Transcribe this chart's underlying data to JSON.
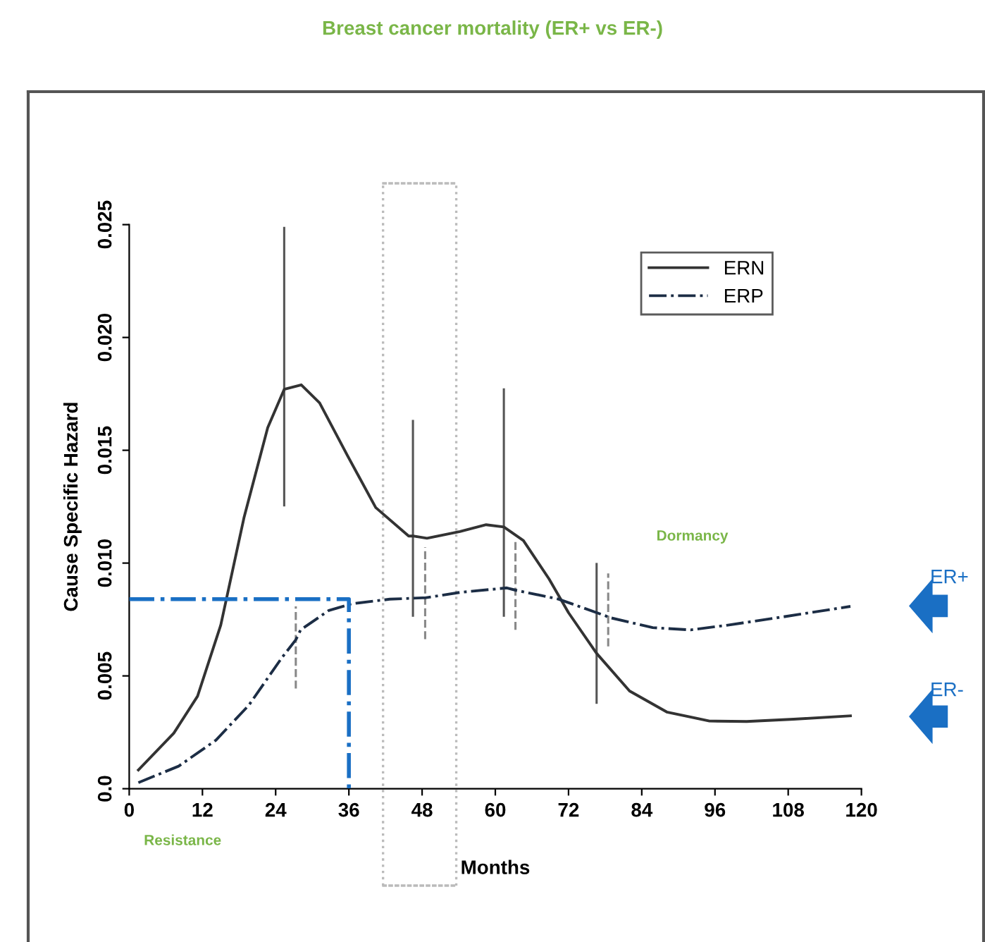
{
  "chart_data": {
    "type": "line",
    "title": "Breast cancer mortality (ER+ vs ER-)",
    "xlabel": "Months",
    "ylabel": "Cause Specific Hazard",
    "xlim": [
      0,
      120
    ],
    "xticks": [
      0,
      12,
      24,
      36,
      48,
      60,
      72,
      84,
      96,
      108,
      120
    ],
    "ylim": [
      0,
      0.025
    ],
    "yticks": [
      {
        "value": 0,
        "label": "0.0"
      },
      0.005,
      {
        "value": 0.01,
        "label": "0.010"
      },
      0.015,
      {
        "value": 0.02,
        "label": "0.020"
      },
      0.025
    ],
    "legend": "top right",
    "grid": false,
    "marker": "none",
    "series": [
      {
        "name": "ERN",
        "color": "#333333",
        "line_style": "solid",
        "x": [
          1.5,
          7.3,
          11.2,
          15,
          18.8,
          22.7,
          25.4,
          28.2,
          31.2,
          35.8,
          40.4,
          45.8,
          46.5,
          48.8,
          54.2,
          58.5,
          61.4,
          64.6,
          68.8,
          72,
          76.6,
          82,
          88.1,
          95.1,
          101.2,
          108.9,
          118.2
        ],
        "values": [
          0.00083,
          0.00246,
          0.0041,
          0.00725,
          0.012,
          0.016,
          0.0177,
          0.0179,
          0.0171,
          0.01475,
          0.01246,
          0.0112,
          0.0112,
          0.0111,
          0.0114,
          0.0117,
          0.0116,
          0.011,
          0.0093,
          0.0078,
          0.006,
          0.00433,
          0.0034,
          0.003,
          0.00298,
          0.00308,
          0.00323
        ],
        "errors": [
          null,
          null,
          null,
          null,
          null,
          null,
          [
            0.01256,
            0.02485
          ],
          null,
          null,
          null,
          null,
          null,
          [
            0.00767,
            0.0163
          ],
          null,
          null,
          null,
          [
            0.00767,
            0.0177
          ],
          null,
          null,
          null,
          [
            0.00381,
            0.00996
          ],
          null,
          null,
          null,
          null,
          null,
          null
        ]
      },
      {
        "name": "ERP",
        "color": "#1c2d45",
        "line_style": "dashed",
        "x": [
          1.5,
          8.1,
          14.2,
          19.6,
          25,
          27.3,
          28.1,
          32.7,
          36.5,
          42.7,
          48.1,
          48.5,
          54.2,
          61.9,
          63.3,
          70.4,
          78.1,
          78.5,
          85.8,
          92,
          98.1,
          105.8,
          118.2
        ],
        "values": [
          0.00027,
          0.001,
          0.00215,
          0.0037,
          0.0058,
          0.0066,
          0.00704,
          0.0079,
          0.0082,
          0.0084,
          0.00846,
          0.00846,
          0.0087,
          0.0089,
          0.0088,
          0.0084,
          0.00766,
          0.0076,
          0.00714,
          0.00704,
          0.00725,
          0.00756,
          0.00808
        ],
        "errors": [
          null,
          null,
          null,
          null,
          null,
          [
            0.00444,
            0.00808
          ],
          null,
          null,
          null,
          null,
          null,
          [
            0.00663,
            0.0107
          ],
          null,
          null,
          [
            0.00704,
            0.011
          ],
          null,
          null,
          [
            0.00631,
            0.00954
          ],
          null,
          null,
          null,
          null,
          null
        ]
      },
      {
        "color": "#1a6fc4",
        "line_style": "dashed",
        "x": [
          0,
          36,
          36
        ],
        "values": [
          0.0084,
          0.0084,
          0
        ]
      }
    ],
    "ref_lines": [
      {
        "axis": "x",
        "value": 41.6,
        "color": "#bbbbbb",
        "line_style": "dotted"
      },
      {
        "axis": "x",
        "value": 53.6,
        "color": "#bbbbbb",
        "line_style": "dotted"
      }
    ],
    "annotations": [
      "Resistance",
      "Dormancy",
      "ER+",
      "ER-"
    ]
  }
}
